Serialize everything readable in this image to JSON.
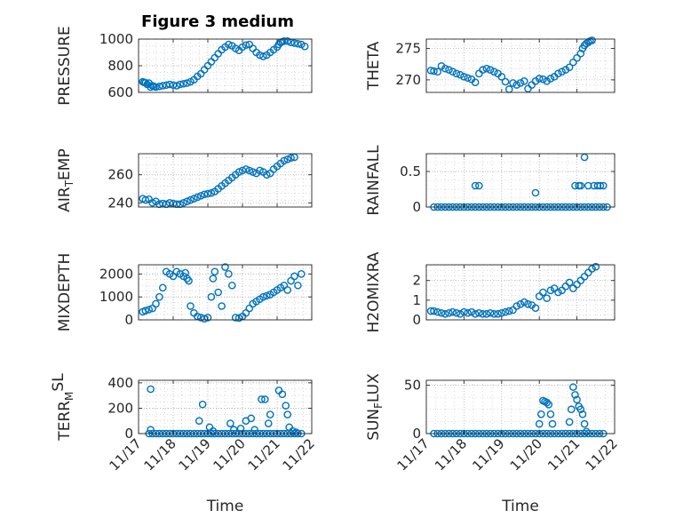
{
  "figure": {
    "title": "Figure 3 medium",
    "marker_color": "#0072BD",
    "axes_color": "#262626",
    "grid_color": "#b0b0b0",
    "background": "#ffffff"
  },
  "chart_data": [
    {
      "type": "scatter",
      "id": "pressure",
      "title": "Figure 3 medium",
      "ylabel_parts": [
        [
          "PRESSURE",
          ""
        ]
      ],
      "xlim": [
        0,
        5
      ],
      "ylim": [
        600,
        1000
      ],
      "yticks": [
        600,
        800,
        1000
      ],
      "xticks": [
        0,
        1,
        2,
        3,
        4,
        5
      ],
      "show_xticklabels": false,
      "xlabel": "",
      "grid": true,
      "x": [
        0.12,
        0.16,
        0.2,
        0.25,
        0.3,
        0.35,
        0.4,
        0.45,
        0.5,
        0.6,
        0.7,
        0.8,
        0.9,
        1.0,
        1.1,
        1.2,
        1.3,
        1.4,
        1.5,
        1.6,
        1.7,
        1.8,
        1.9,
        2.0,
        2.1,
        2.2,
        2.3,
        2.4,
        2.5,
        2.6,
        2.7,
        2.8,
        2.9,
        3.0,
        3.1,
        3.2,
        3.3,
        3.4,
        3.5,
        3.6,
        3.7,
        3.8,
        3.9,
        4.0,
        4.05,
        4.1,
        4.15,
        4.2,
        4.3,
        4.4,
        4.5,
        4.6,
        4.7,
        4.8
      ],
      "y": [
        680,
        675,
        672,
        660,
        670,
        640,
        650,
        645,
        640,
        645,
        650,
        655,
        660,
        655,
        650,
        660,
        665,
        670,
        680,
        695,
        720,
        740,
        770,
        800,
        830,
        860,
        890,
        920,
        940,
        960,
        950,
        930,
        915,
        940,
        955,
        960,
        930,
        900,
        880,
        870,
        880,
        900,
        920,
        940,
        960,
        975,
        980,
        985,
        985,
        975,
        970,
        965,
        960,
        945
      ]
    },
    {
      "type": "scatter",
      "id": "theta",
      "ylabel_parts": [
        [
          "THETA",
          ""
        ]
      ],
      "xlim": [
        0,
        5
      ],
      "ylim": [
        268,
        276.5
      ],
      "yticks": [
        270,
        275
      ],
      "xticks": [
        0,
        1,
        2,
        3,
        4,
        5
      ],
      "show_xticklabels": false,
      "xlabel": "",
      "grid": true,
      "x": [
        0.12,
        0.2,
        0.3,
        0.4,
        0.5,
        0.6,
        0.7,
        0.8,
        0.9,
        1.0,
        1.1,
        1.2,
        1.3,
        1.4,
        1.5,
        1.6,
        1.7,
        1.8,
        1.9,
        2.0,
        2.1,
        2.2,
        2.3,
        2.4,
        2.5,
        2.6,
        2.7,
        2.8,
        2.9,
        3.0,
        3.1,
        3.2,
        3.3,
        3.4,
        3.5,
        3.6,
        3.7,
        3.8,
        3.9,
        4.0,
        4.1,
        4.15,
        4.2,
        4.25,
        4.3,
        4.35,
        4.4
      ],
      "y": [
        271.5,
        271.4,
        271.3,
        272.2,
        271.8,
        271.6,
        271.3,
        271.0,
        270.8,
        270.5,
        270.3,
        270.1,
        269.6,
        271.0,
        271.6,
        271.8,
        271.6,
        271.3,
        271.0,
        270.5,
        269.7,
        268.5,
        269.5,
        269.2,
        269.5,
        269.8,
        268.6,
        269.2,
        269.8,
        270.2,
        270.1,
        269.8,
        270.2,
        270.5,
        271.0,
        271.3,
        271.6,
        272.0,
        272.8,
        273.5,
        274.2,
        275.0,
        275.5,
        275.8,
        276.0,
        276.2,
        276.3
      ]
    },
    {
      "type": "scatter",
      "id": "air-temp",
      "ylabel_parts": [
        [
          "AIR",
          ""
        ],
        [
          "T",
          "sub"
        ],
        [
          "EMP",
          ""
        ]
      ],
      "xlim": [
        0,
        5
      ],
      "ylim": [
        237,
        275
      ],
      "yticks": [
        240,
        260
      ],
      "xticks": [
        0,
        1,
        2,
        3,
        4,
        5
      ],
      "show_xticklabels": false,
      "xlabel": "",
      "grid": true,
      "x": [
        0.12,
        0.2,
        0.3,
        0.4,
        0.5,
        0.6,
        0.7,
        0.8,
        0.9,
        1.0,
        1.1,
        1.2,
        1.3,
        1.4,
        1.5,
        1.6,
        1.7,
        1.8,
        1.9,
        2.0,
        2.1,
        2.2,
        2.3,
        2.4,
        2.5,
        2.6,
        2.7,
        2.8,
        2.9,
        3.0,
        3.1,
        3.2,
        3.3,
        3.4,
        3.5,
        3.6,
        3.7,
        3.8,
        3.9,
        4.0,
        4.1,
        4.2,
        4.3,
        4.4,
        4.5
      ],
      "y": [
        243,
        242,
        242.5,
        240,
        241,
        239,
        239.5,
        239,
        240,
        239.5,
        239,
        239,
        240,
        241,
        242,
        243,
        244,
        245,
        246,
        246.5,
        247,
        248,
        250,
        252,
        254,
        256,
        258,
        260,
        262,
        263,
        264,
        263,
        262,
        261,
        263,
        262,
        260,
        261,
        264,
        266,
        268,
        270,
        271,
        272,
        272.5
      ]
    },
    {
      "type": "scatter",
      "id": "rainfall",
      "ylabel_parts": [
        [
          "RAINFALL",
          ""
        ]
      ],
      "xlim": [
        0,
        5
      ],
      "ylim": [
        0,
        0.75
      ],
      "yticks": [
        0,
        0.5
      ],
      "xticks": [
        0,
        1,
        2,
        3,
        4,
        5
      ],
      "show_xticklabels": false,
      "xlabel": "",
      "grid": true,
      "x": [
        0.2,
        0.3,
        0.4,
        0.5,
        0.6,
        0.7,
        0.8,
        0.9,
        1.0,
        1.1,
        1.2,
        1.3,
        1.4,
        1.5,
        1.6,
        1.7,
        1.8,
        1.9,
        2.0,
        2.1,
        2.2,
        2.3,
        2.4,
        2.5,
        2.6,
        2.7,
        2.8,
        2.9,
        3.0,
        3.1,
        3.2,
        3.3,
        3.4,
        3.5,
        3.6,
        3.7,
        3.8,
        3.9,
        4.0,
        4.1,
        4.2,
        4.3,
        4.4,
        4.5,
        4.6,
        4.7,
        4.8,
        1.3,
        1.4,
        2.9,
        3.95,
        4.05,
        4.1,
        4.2,
        4.3,
        4.45,
        4.55,
        4.62,
        4.7
      ],
      "y": [
        0,
        0,
        0,
        0,
        0,
        0,
        0,
        0,
        0,
        0,
        0,
        0,
        0,
        0,
        0,
        0,
        0,
        0,
        0,
        0,
        0,
        0,
        0,
        0,
        0,
        0,
        0,
        0,
        0,
        0,
        0,
        0,
        0,
        0,
        0,
        0,
        0,
        0,
        0,
        0,
        0,
        0,
        0,
        0,
        0,
        0,
        0,
        0.3,
        0.3,
        0.2,
        0.3,
        0.3,
        0.3,
        0.7,
        0.3,
        0.3,
        0.3,
        0.3,
        0.3
      ]
    },
    {
      "type": "scatter",
      "id": "mixdepth",
      "ylabel_parts": [
        [
          "MIXDEPTH",
          ""
        ]
      ],
      "xlim": [
        0,
        5
      ],
      "ylim": [
        0,
        2400
      ],
      "yticks": [
        0,
        1000,
        2000
      ],
      "xticks": [
        0,
        1,
        2,
        3,
        4,
        5
      ],
      "show_xticklabels": false,
      "xlabel": "",
      "grid": true,
      "x": [
        0.12,
        0.2,
        0.3,
        0.4,
        0.5,
        0.6,
        0.7,
        0.8,
        0.9,
        1.0,
        1.1,
        1.2,
        1.3,
        1.35,
        1.4,
        1.45,
        1.5,
        1.6,
        1.7,
        1.8,
        1.9,
        2.0,
        2.1,
        2.15,
        2.2,
        2.3,
        2.4,
        2.5,
        2.6,
        2.7,
        2.8,
        2.9,
        3.0,
        3.1,
        3.2,
        3.3,
        3.4,
        3.5,
        3.6,
        3.7,
        3.8,
        3.9,
        4.0,
        4.1,
        4.2,
        4.3,
        4.4,
        4.5,
        4.6,
        4.7
      ],
      "y": [
        350,
        400,
        450,
        500,
        700,
        1000,
        1400,
        2100,
        2000,
        1900,
        2100,
        2000,
        1900,
        2050,
        1800,
        1700,
        600,
        300,
        150,
        100,
        50,
        100,
        1000,
        1800,
        2100,
        1200,
        600,
        2300,
        2000,
        1500,
        100,
        80,
        150,
        300,
        500,
        700,
        800,
        900,
        1000,
        1050,
        1100,
        1200,
        1300,
        1400,
        1500,
        1300,
        1700,
        1900,
        1500,
        2000
      ]
    },
    {
      "type": "scatter",
      "id": "h2omixra",
      "ylabel_parts": [
        [
          "H2OMIXRA",
          ""
        ]
      ],
      "xlim": [
        0,
        5
      ],
      "ylim": [
        0,
        2.8
      ],
      "yticks": [
        0,
        1,
        2
      ],
      "xticks": [
        0,
        1,
        2,
        3,
        4,
        5
      ],
      "show_xticklabels": false,
      "xlabel": "",
      "grid": true,
      "x": [
        0.12,
        0.2,
        0.3,
        0.4,
        0.5,
        0.6,
        0.7,
        0.8,
        0.9,
        1.0,
        1.1,
        1.2,
        1.3,
        1.4,
        1.5,
        1.6,
        1.7,
        1.8,
        1.9,
        2.0,
        2.1,
        2.2,
        2.3,
        2.4,
        2.5,
        2.6,
        2.7,
        2.8,
        2.9,
        3.0,
        3.1,
        3.2,
        3.3,
        3.4,
        3.5,
        3.6,
        3.7,
        3.8,
        3.9,
        4.0,
        4.1,
        4.2,
        4.3,
        4.4,
        4.5
      ],
      "y": [
        0.45,
        0.45,
        0.4,
        0.35,
        0.3,
        0.35,
        0.4,
        0.35,
        0.3,
        0.4,
        0.35,
        0.4,
        0.3,
        0.35,
        0.3,
        0.3,
        0.35,
        0.3,
        0.3,
        0.35,
        0.4,
        0.45,
        0.5,
        0.7,
        0.8,
        0.9,
        0.8,
        0.75,
        0.6,
        1.2,
        1.4,
        1.1,
        1.5,
        1.6,
        1.4,
        1.5,
        1.7,
        1.9,
        1.6,
        1.8,
        2.0,
        2.2,
        2.4,
        2.6,
        2.7
      ]
    },
    {
      "type": "scatter",
      "id": "terr-msl",
      "ylabel_parts": [
        [
          "TERR",
          ""
        ],
        [
          "M",
          "sub"
        ],
        [
          "SL",
          "sup"
        ]
      ],
      "xlim": [
        0,
        5
      ],
      "ylim": [
        0,
        420
      ],
      "yticks": [
        0,
        200,
        400
      ],
      "xticks": [
        0,
        1,
        2,
        3,
        4,
        5
      ],
      "xticklabels": [
        "11/17",
        "11/18",
        "11/19",
        "11/20",
        "11/21",
        "11/22"
      ],
      "show_xticklabels": true,
      "xlabel": "Time",
      "grid": true,
      "x": [
        0.3,
        0.4,
        0.5,
        0.6,
        0.7,
        0.8,
        0.9,
        1.0,
        1.1,
        1.2,
        1.3,
        1.4,
        1.5,
        1.6,
        1.7,
        1.8,
        1.9,
        2.0,
        2.1,
        2.2,
        2.3,
        2.4,
        2.5,
        2.6,
        2.7,
        2.8,
        2.9,
        3.0,
        3.1,
        3.2,
        3.3,
        3.4,
        3.5,
        3.6,
        3.7,
        3.8,
        3.9,
        4.0,
        4.1,
        4.2,
        4.3,
        4.4,
        4.5,
        4.6,
        4.7,
        0.35,
        0.35,
        1.75,
        1.85,
        2.05,
        2.15,
        2.65,
        2.75,
        2.95,
        3.1,
        3.25,
        3.35,
        3.55,
        3.65,
        3.75,
        3.8,
        4.05,
        4.15,
        4.25,
        4.3,
        4.35,
        4.45,
        4.55
      ],
      "y": [
        0,
        0,
        0,
        0,
        0,
        0,
        0,
        0,
        0,
        0,
        0,
        0,
        0,
        0,
        0,
        0,
        0,
        0,
        0,
        0,
        0,
        0,
        0,
        0,
        0,
        0,
        0,
        0,
        0,
        0,
        0,
        0,
        0,
        0,
        0,
        0,
        0,
        0,
        0,
        0,
        0,
        0,
        0,
        0,
        0,
        350,
        30,
        100,
        230,
        50,
        20,
        80,
        30,
        40,
        100,
        120,
        30,
        270,
        270,
        80,
        150,
        340,
        310,
        220,
        150,
        50,
        20,
        10
      ]
    },
    {
      "type": "scatter",
      "id": "sun-flux",
      "ylabel_parts": [
        [
          "SUN",
          ""
        ],
        [
          "F",
          "sub"
        ],
        [
          "LUX",
          ""
        ]
      ],
      "xlim": [
        0,
        5
      ],
      "ylim": [
        0,
        55
      ],
      "yticks": [
        0,
        50
      ],
      "xticks": [
        0,
        1,
        2,
        3,
        4,
        5
      ],
      "xticklabels": [
        "11/17",
        "11/18",
        "11/19",
        "11/20",
        "11/21",
        "11/22"
      ],
      "show_xticklabels": true,
      "xlabel": "Time",
      "grid": true,
      "x": [
        0.2,
        0.3,
        0.4,
        0.5,
        0.6,
        0.7,
        0.8,
        0.9,
        1.0,
        1.1,
        1.2,
        1.3,
        1.4,
        1.5,
        1.6,
        1.7,
        1.8,
        1.9,
        2.0,
        2.1,
        2.2,
        2.3,
        2.4,
        2.5,
        2.6,
        2.7,
        2.8,
        2.9,
        3.0,
        3.1,
        3.2,
        3.3,
        3.4,
        3.5,
        3.6,
        3.7,
        3.8,
        3.9,
        4.0,
        4.1,
        4.2,
        4.3,
        4.4,
        4.5,
        4.6,
        4.7,
        3.0,
        3.05,
        3.1,
        3.15,
        3.2,
        3.25,
        3.3,
        3.35,
        3.8,
        3.85,
        3.9,
        3.95,
        4.0,
        4.05,
        4.1,
        4.15,
        4.2,
        4.25
      ],
      "y": [
        0,
        0,
        0,
        0,
        0,
        0,
        0,
        0,
        0,
        0,
        0,
        0,
        0,
        0,
        0,
        0,
        0,
        0,
        0,
        0,
        0,
        0,
        0,
        0,
        0,
        0,
        0,
        0,
        0,
        0,
        0,
        0,
        0,
        0,
        0,
        0,
        0,
        0,
        0,
        0,
        0,
        0,
        0,
        0,
        0,
        0,
        10,
        20,
        34,
        33,
        32,
        30,
        20,
        10,
        12,
        25,
        48,
        40,
        35,
        28,
        25,
        20,
        10,
        2
      ]
    }
  ]
}
